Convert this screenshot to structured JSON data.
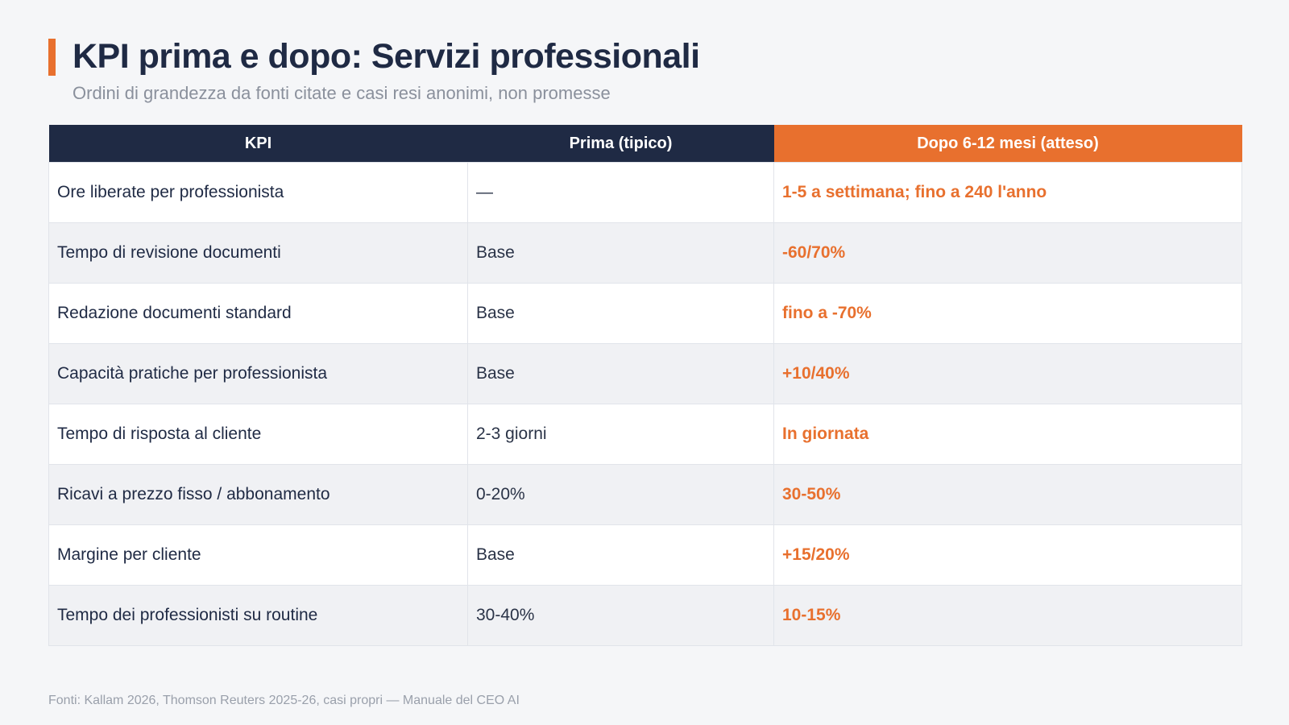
{
  "header": {
    "title": "KPI prima e dopo: Servizi professionali",
    "subtitle": "Ordini di grandezza da fonti citate e casi resi anonimi, non promesse"
  },
  "table": {
    "columns": [
      "KPI",
      "Prima (tipico)",
      "Dopo 6-12 mesi (atteso)"
    ],
    "rows": [
      {
        "kpi": "Ore liberate per professionista",
        "before": "—",
        "after": "1-5 a settimana; fino a 240 l'anno"
      },
      {
        "kpi": "Tempo di revisione documenti",
        "before": "Base",
        "after": "-60/70%"
      },
      {
        "kpi": "Redazione documenti standard",
        "before": "Base",
        "after": "fino a -70%"
      },
      {
        "kpi": "Capacità pratiche per professionista",
        "before": "Base",
        "after": "+10/40%"
      },
      {
        "kpi": "Tempo di risposta al cliente",
        "before": "2-3 giorni",
        "after": "In giornata"
      },
      {
        "kpi": "Ricavi a prezzo fisso / abbonamento",
        "before": "0-20%",
        "after": "30-50%"
      },
      {
        "kpi": "Margine per cliente",
        "before": "Base",
        "after": "+15/20%"
      },
      {
        "kpi": "Tempo dei professionisti su routine",
        "before": "30-40%",
        "after": "10-15%"
      }
    ]
  },
  "footer": {
    "sources": "Fonti: Kallam 2026, Thomson Reuters 2025-26, casi propri — Manuale del CEO AI"
  },
  "colors": {
    "navy": "#1f2a44",
    "accent": "#e8702e"
  }
}
